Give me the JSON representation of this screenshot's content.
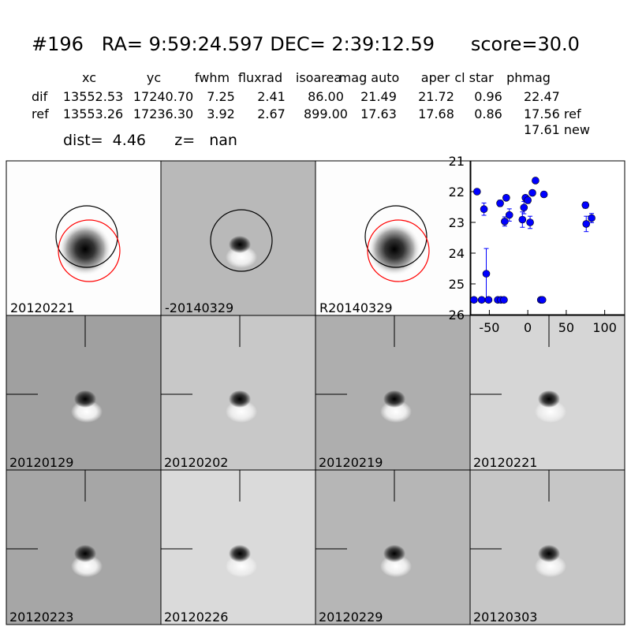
{
  "header": {
    "title": "#196   RA= 9:59:24.597 DEC= 2:39:12.59      score=30.0",
    "columns": [
      "xc",
      "yc",
      "fwhm",
      "fluxrad",
      "isoarea",
      "mag auto",
      "aper",
      "cl star",
      "phmag"
    ],
    "rows": [
      {
        "label": "dif",
        "cells": [
          "13552.53",
          "17240.70",
          "7.25",
          "2.41",
          "86.00",
          "21.49",
          "21.72",
          "0.96",
          "22.47"
        ]
      },
      {
        "label": "ref",
        "cells": [
          "13553.26",
          "17236.30",
          "3.92",
          "2.67",
          "899.00",
          "17.63",
          "17.68",
          "0.86",
          "17.56 ref"
        ]
      }
    ],
    "extra": "17.61 new",
    "dist": "dist=  4.46      z=   nan"
  },
  "stamps": {
    "top": [
      "20120221",
      "-20140329",
      "R20140329"
    ],
    "grid": [
      "20120129",
      "20120202",
      "20120219",
      "20120221",
      "20120223",
      "20120226",
      "20120229",
      "20120303"
    ],
    "highlight": "20120221"
  },
  "chart_data": {
    "type": "scatter",
    "color": "#0000ff",
    "x": [
      -66,
      -57,
      -54,
      -70,
      -60,
      -51,
      -39,
      -35,
      -31,
      -36,
      -30,
      -28,
      -24,
      -7,
      -5,
      -3,
      0,
      3,
      6,
      10,
      17,
      19,
      21,
      75,
      76,
      83
    ],
    "values": [
      22.0,
      22.57,
      24.67,
      25.52,
      25.52,
      25.52,
      25.52,
      25.52,
      25.52,
      22.38,
      22.97,
      22.2,
      22.76,
      22.91,
      22.52,
      22.2,
      22.28,
      23.0,
      22.04,
      21.64,
      25.52,
      25.52,
      22.09,
      22.44,
      23.05,
      22.86
    ],
    "errors": [
      0.05,
      0.2,
      0.82,
      0.05,
      0.05,
      0.05,
      0.05,
      0.05,
      0.05,
      0.1,
      0.15,
      0.08,
      0.2,
      0.25,
      0.2,
      0.08,
      0.1,
      0.2,
      0.08,
      0.08,
      0.05,
      0.05,
      0.08,
      0.1,
      0.25,
      0.15
    ],
    "xlim": [
      -74,
      126
    ],
    "ylim": [
      21,
      26
    ],
    "invert_y": true,
    "xticks": [
      -50,
      0,
      50,
      100
    ],
    "yticks": [
      21,
      22,
      23,
      24,
      25,
      26
    ]
  }
}
